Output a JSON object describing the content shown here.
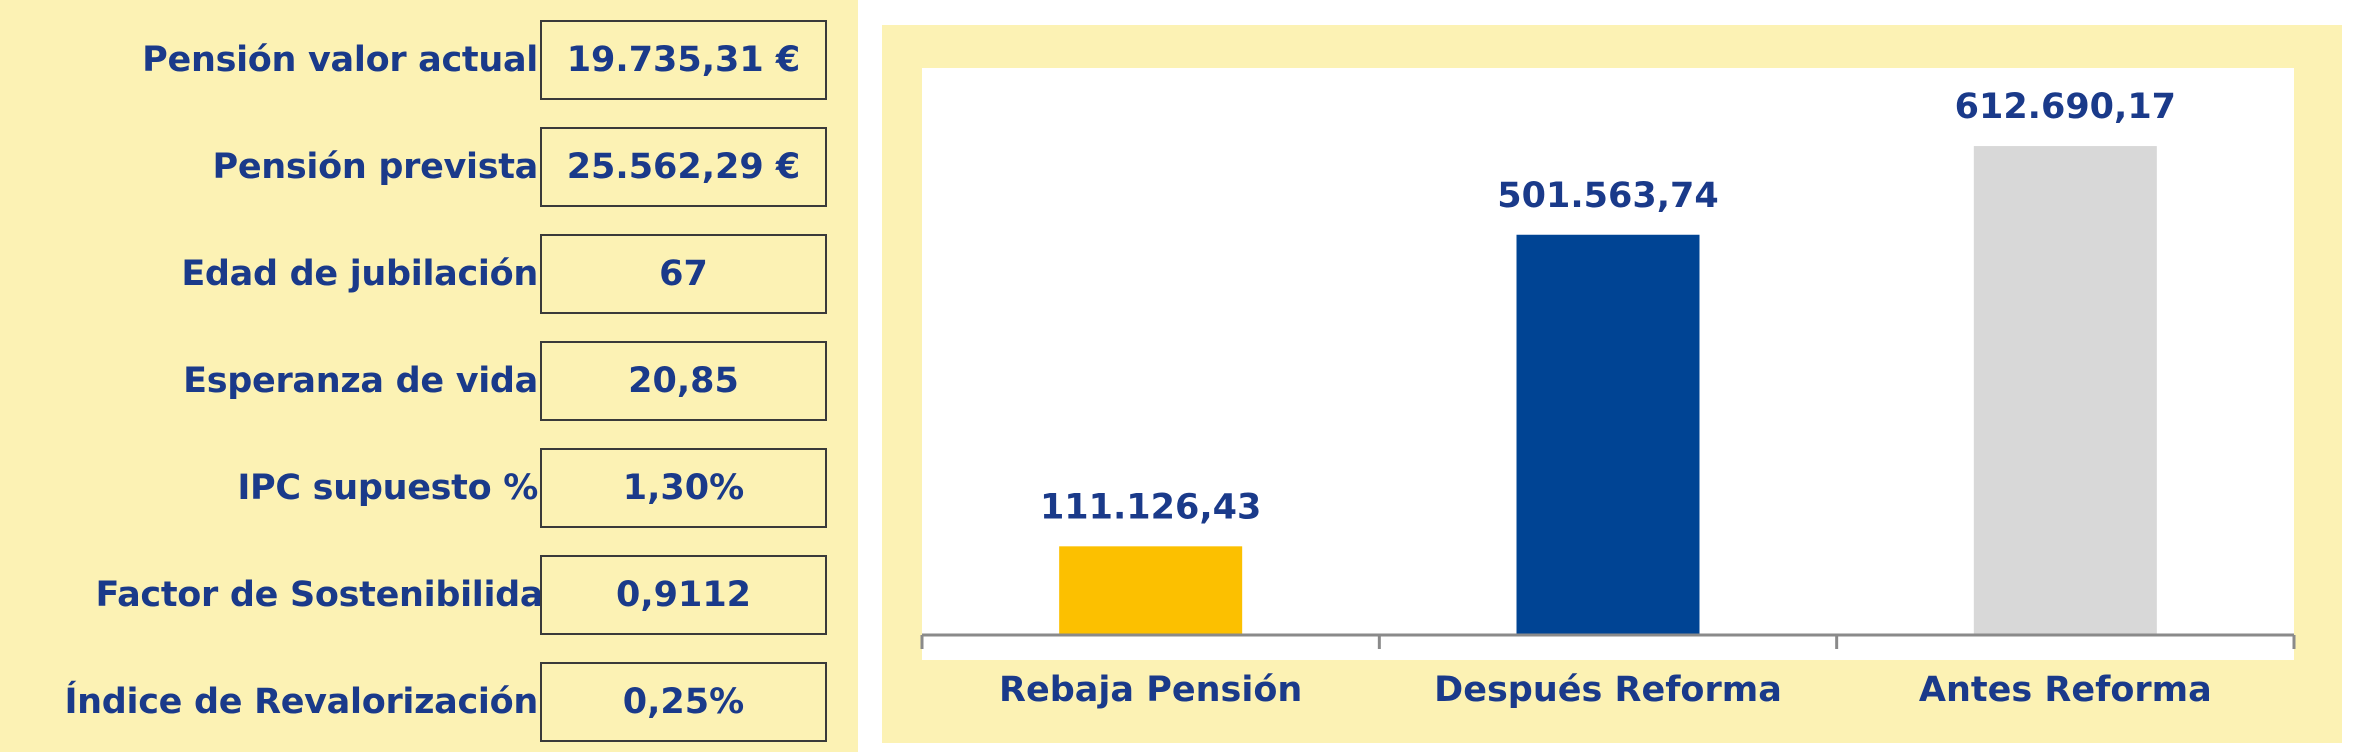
{
  "parameters": [
    {
      "label": "Pensión valor actual",
      "value": "19.735,31 €"
    },
    {
      "label": "Pensión prevista",
      "value": "25.562,29 €"
    },
    {
      "label": "Edad de jubilación",
      "value": "67"
    },
    {
      "label": "Esperanza de vida",
      "value": "20,85"
    },
    {
      "label": "IPC supuesto %",
      "value": "1,30%"
    },
    {
      "label": "Factor de Sostenibilidad",
      "value": "0,9112"
    },
    {
      "label": "Índice de Revalorización",
      "value": "0,25%"
    }
  ],
  "chart_data": {
    "type": "bar",
    "categories": [
      "Rebaja Pensión",
      "Después Reforma",
      "Antes Reforma"
    ],
    "values": [
      111126.43,
      501563.74,
      612690.17
    ],
    "value_labels": [
      "111.126,43",
      "501.563,74",
      "612.690,17"
    ],
    "colors": [
      "#fcc000",
      "#004494",
      "#d8d8d8"
    ],
    "ylim": [
      0,
      700000
    ],
    "grid": false,
    "legend": "none"
  },
  "colors": {
    "panel_background": "#fcf2b4",
    "text": "#1a3a8a",
    "plot_background": "#ffffff",
    "axis": "#8a8a8a"
  }
}
